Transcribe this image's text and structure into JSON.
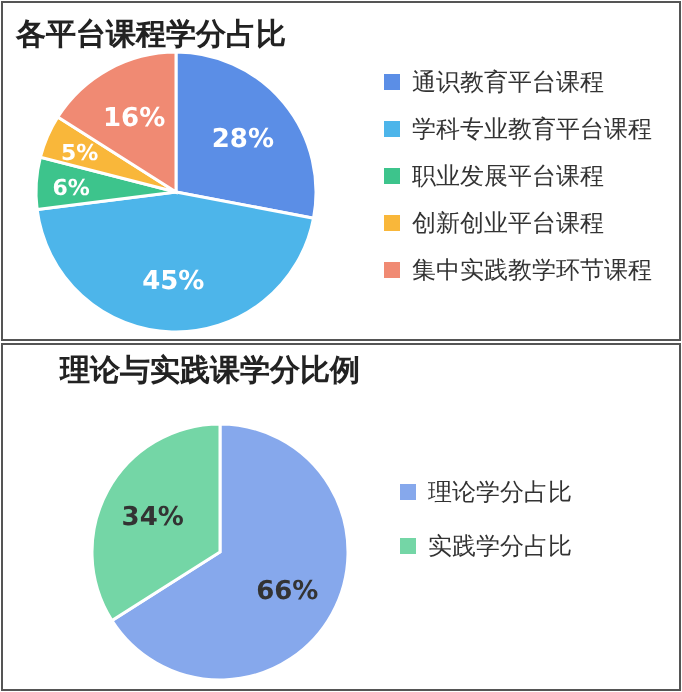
{
  "chart_data": [
    {
      "type": "pie",
      "title": "各平台课程学分占比",
      "categories": [
        "通识教育平台课程",
        "学科专业教育平台课程",
        "职业发展平台课程",
        "创新创业平台课程",
        "集中实践教学环节课程"
      ],
      "values": [
        28,
        45,
        6,
        5,
        16
      ],
      "colors": [
        "#5b8ee6",
        "#4db5ea",
        "#3dc48c",
        "#f9b73a",
        "#f08a73"
      ],
      "value_labels": [
        "28%",
        "45%",
        "6%",
        "5%",
        "16%"
      ],
      "legend": "right"
    },
    {
      "type": "pie",
      "title": "理论与实践课学分比例",
      "categories": [
        "理论学分占比",
        "实践学分占比"
      ],
      "values": [
        66,
        34
      ],
      "colors": [
        "#86a8ec",
        "#74d6a6"
      ],
      "value_labels": [
        "66%",
        "34%"
      ],
      "legend": "right"
    }
  ]
}
